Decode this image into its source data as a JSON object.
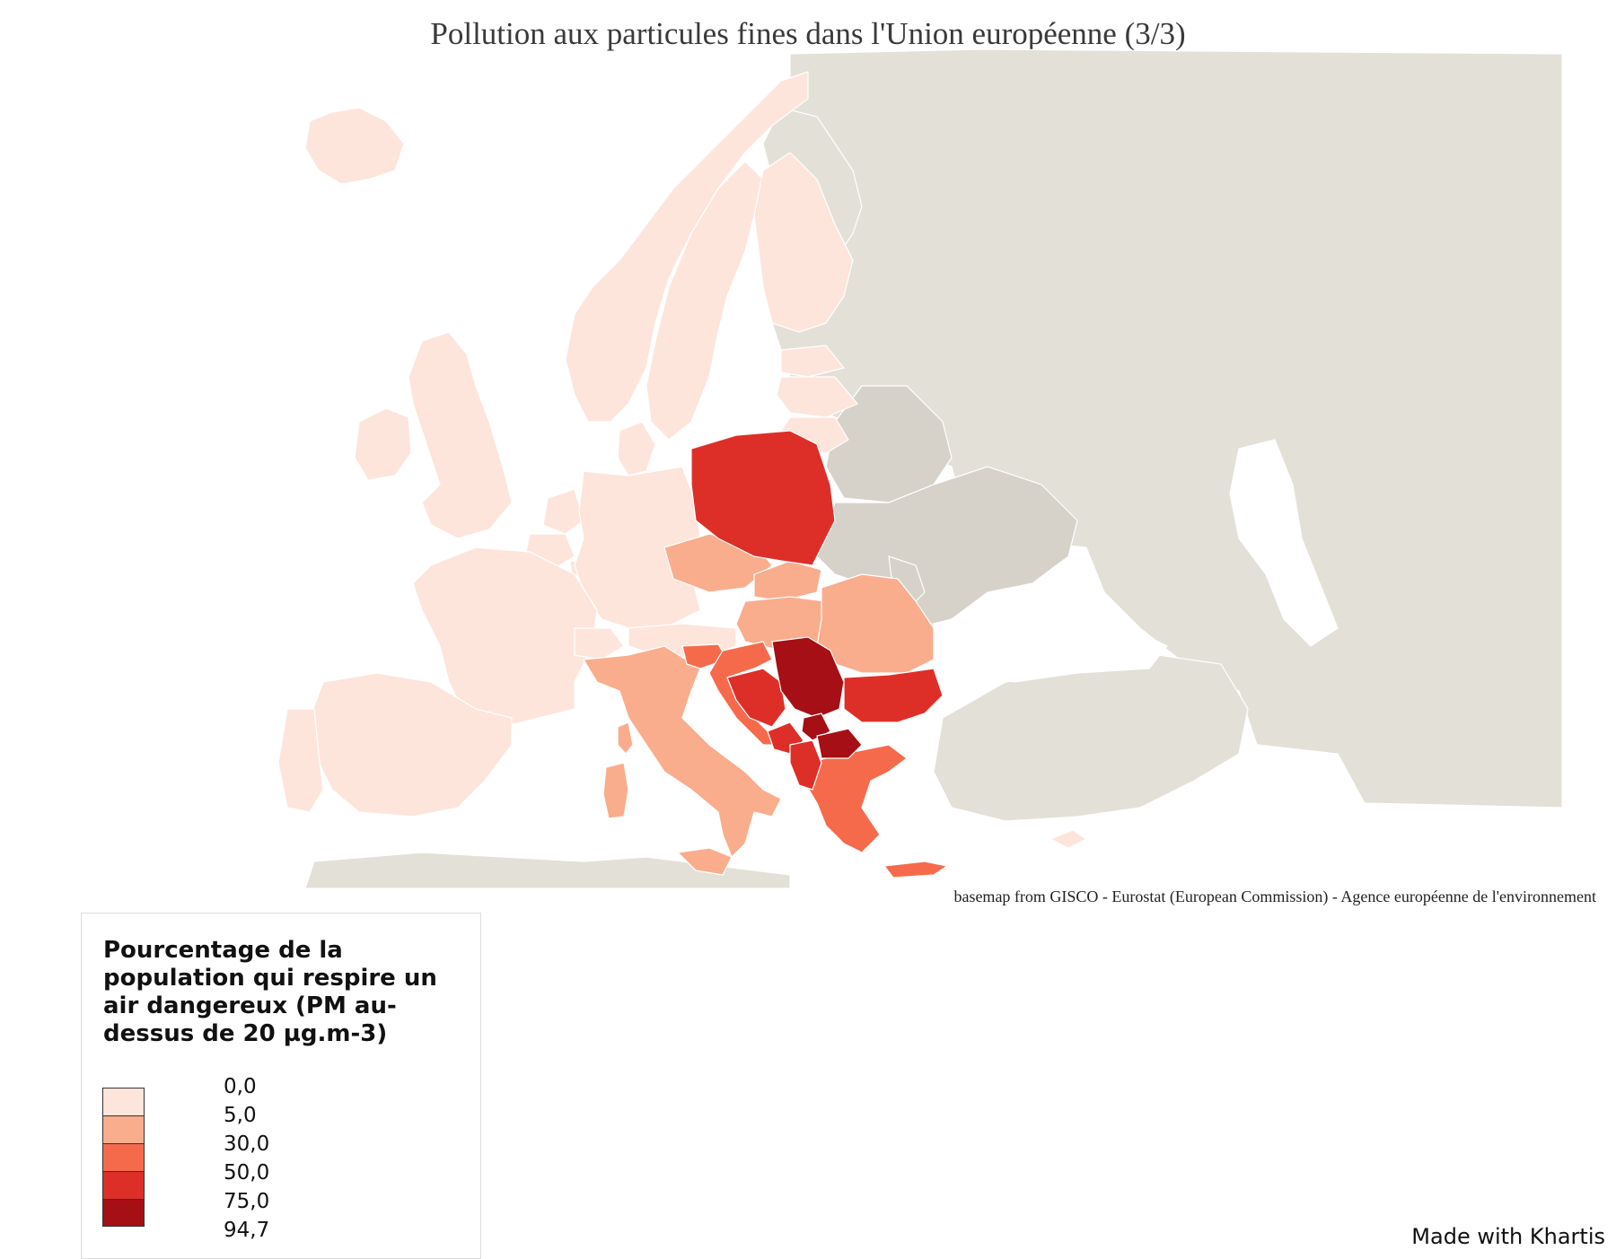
{
  "title": "Pollution aux particules fines dans l'Union européenne (3/3)",
  "source": "basemap from GISCO - Eurostat (European Commission) - Agence européenne de l'environnement",
  "credit": "Made with Khartis",
  "legend": {
    "title": "Pourcentage de la population qui respire un air dangereux (PM au-dessus de 20 µg.m-3)",
    "breaks": [
      "0,0",
      "5,0",
      "30,0",
      "50,0",
      "75,0",
      "94,7"
    ],
    "colors": [
      "#fde5dc",
      "#f9ad8d",
      "#f66a4c",
      "#dd2f28",
      "#a50f15"
    ]
  },
  "colors": {
    "non_eu": "#e3e0d8",
    "non_eu_dark": "#d6d2ca",
    "sea": "#ffffff",
    "border": "#ffffff"
  },
  "regions": [
    {
      "name": "Iceland",
      "class": 0
    },
    {
      "name": "Ireland",
      "class": 0
    },
    {
      "name": "United Kingdom",
      "class": 0
    },
    {
      "name": "Norway",
      "class": 0
    },
    {
      "name": "Sweden",
      "class": 0
    },
    {
      "name": "Finland",
      "class": 0
    },
    {
      "name": "Estonia",
      "class": 0
    },
    {
      "name": "Latvia",
      "class": 0
    },
    {
      "name": "Lithuania",
      "class": 0
    },
    {
      "name": "Denmark",
      "class": 0
    },
    {
      "name": "Netherlands",
      "class": 0
    },
    {
      "name": "Belgium",
      "class": 0
    },
    {
      "name": "Luxembourg",
      "class": 0
    },
    {
      "name": "Germany",
      "class": 0
    },
    {
      "name": "France",
      "class": 0
    },
    {
      "name": "Spain",
      "class": 0
    },
    {
      "name": "Portugal",
      "class": 0
    },
    {
      "name": "Switzerland",
      "class": 0
    },
    {
      "name": "Austria",
      "class": 0
    },
    {
      "name": "Cyprus",
      "class": 0
    },
    {
      "name": "Czech Republic",
      "class": 1
    },
    {
      "name": "Slovakia",
      "class": 1
    },
    {
      "name": "Hungary",
      "class": 1
    },
    {
      "name": "Romania",
      "class": 1
    },
    {
      "name": "Italy",
      "class": 1
    },
    {
      "name": "Corsica",
      "class": 1
    },
    {
      "name": "Sardinia",
      "class": 1
    },
    {
      "name": "Sicily",
      "class": 1
    },
    {
      "name": "Slovenia",
      "class": 2
    },
    {
      "name": "Croatia",
      "class": 2
    },
    {
      "name": "Greece",
      "class": 2
    },
    {
      "name": "Crete",
      "class": 2
    },
    {
      "name": "Poland",
      "class": 3
    },
    {
      "name": "Bulgaria",
      "class": 3
    },
    {
      "name": "Bosnia and Herzegovina",
      "class": 3
    },
    {
      "name": "Montenegro",
      "class": 3
    },
    {
      "name": "Albania",
      "class": 3
    },
    {
      "name": "Serbia",
      "class": 4
    },
    {
      "name": "Kosovo",
      "class": 4
    },
    {
      "name": "North Macedonia",
      "class": 4
    }
  ]
}
